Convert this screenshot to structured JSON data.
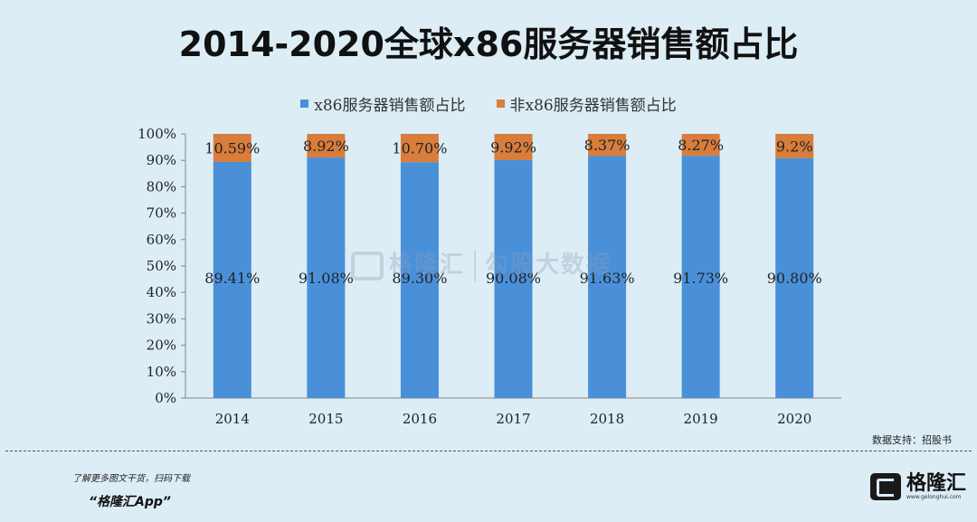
{
  "title": "2014-2020全球x86服务器销售额占比",
  "colors": {
    "series1": "#4a90d9",
    "series2": "#d87d3b",
    "axis": "#888888"
  },
  "chart_data": {
    "type": "bar",
    "stacked": true,
    "categories": [
      "2014",
      "2015",
      "2016",
      "2017",
      "2018",
      "2019",
      "2020"
    ],
    "series": [
      {
        "name": "x86服务器销售额占比",
        "values": [
          89.41,
          91.08,
          89.3,
          90.08,
          91.63,
          91.73,
          90.8
        ],
        "labels": [
          "89.41%",
          "91.08%",
          "89.30%",
          "90.08%",
          "91.63%",
          "91.73%",
          "90.80%"
        ]
      },
      {
        "name": "非x86服务器销售额占比",
        "values": [
          10.59,
          8.92,
          10.7,
          9.92,
          8.37,
          8.27,
          9.2
        ],
        "labels": [
          "10.59%",
          "8.92%",
          "10.70%",
          "9.92%",
          "8.37%",
          "8.27%",
          "9.2%"
        ]
      }
    ],
    "yticks": [
      "0%",
      "10%",
      "20%",
      "30%",
      "40%",
      "50%",
      "60%",
      "70%",
      "80%",
      "90%",
      "100%"
    ],
    "ylim": [
      0,
      100
    ],
    "legend_position": "top-center"
  },
  "watermark": {
    "brand": "格隆汇",
    "text": "勾股大数据"
  },
  "source": "数据支持：招股书",
  "footer": {
    "hint": "了解更多图文干货，扫码下载",
    "app": "“格隆汇App”"
  },
  "brand": {
    "name": "格隆汇",
    "url": "www.gelonghui.com"
  }
}
